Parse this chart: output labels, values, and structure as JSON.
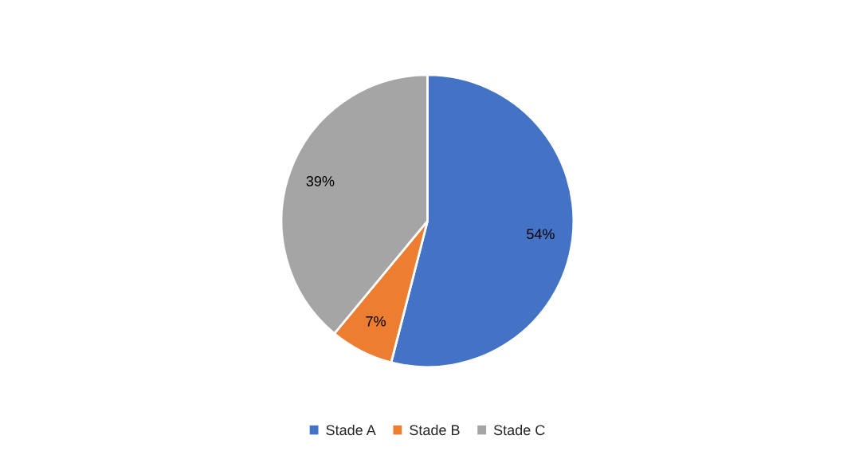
{
  "chart_data": {
    "type": "pie",
    "categories": [
      "Stade A",
      "Stade B",
      "Stade C"
    ],
    "values": [
      54,
      7,
      39
    ],
    "colors": [
      "#4472c4",
      "#ed7d31",
      "#a5a5a5"
    ],
    "value_labels": [
      "54%",
      "7%",
      "39%"
    ],
    "legend": "bottom"
  }
}
